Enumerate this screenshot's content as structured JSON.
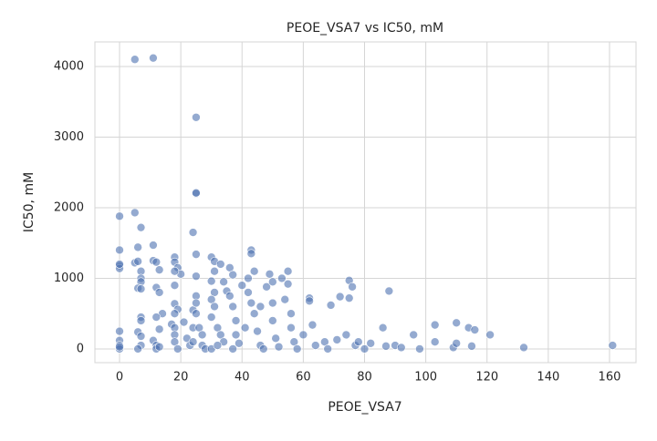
{
  "chart_data": {
    "type": "scatter",
    "title": "PEOE_VSA7 vs IC50, mM",
    "x_label": "PEOE_VSA7",
    "y_label": "IC50, mM",
    "x": [
      5,
      11,
      25,
      25,
      25,
      0,
      5,
      7,
      24,
      0,
      6,
      11,
      0,
      0,
      0,
      0,
      0,
      0,
      0,
      0,
      5,
      6,
      7,
      7,
      7,
      6,
      7,
      7,
      7,
      6,
      7,
      7,
      6,
      11,
      12,
      13,
      12,
      13,
      14,
      12,
      11,
      12,
      12,
      13,
      13,
      18,
      18,
      19,
      20,
      18,
      18,
      18,
      19,
      18,
      17,
      18,
      18,
      18,
      19,
      21,
      22,
      23,
      24,
      24,
      24,
      25,
      25,
      25,
      25,
      25,
      26,
      27,
      27,
      28,
      30,
      31,
      31,
      30,
      31,
      30,
      31,
      30,
      32,
      33,
      34,
      30,
      32,
      33,
      34,
      35,
      36,
      37,
      36,
      37,
      38,
      38,
      37,
      39,
      40,
      41,
      43,
      43,
      42,
      42,
      43,
      44,
      44,
      45,
      46,
      46,
      47,
      48,
      49,
      50,
      50,
      50,
      51,
      52,
      53,
      54,
      55,
      55,
      56,
      56,
      57,
      58,
      60,
      62,
      62,
      63,
      64,
      67,
      68,
      69,
      71,
      72,
      74,
      75,
      76,
      75,
      77,
      78,
      80,
      82,
      86,
      87,
      88,
      90,
      92,
      96,
      98,
      103,
      103,
      109,
      110,
      110,
      114,
      115,
      116,
      121,
      132,
      161
    ],
    "values": [
      4100,
      4120,
      3280,
      2200,
      2210,
      1880,
      1930,
      1720,
      1650,
      1400,
      1440,
      1470,
      1180,
      1140,
      1200,
      250,
      120,
      50,
      0,
      30,
      1220,
      1240,
      1100,
      1000,
      950,
      860,
      850,
      450,
      400,
      240,
      180,
      50,
      0,
      1250,
      1230,
      1120,
      870,
      800,
      500,
      450,
      120,
      50,
      0,
      30,
      280,
      1300,
      1230,
      1150,
      1060,
      1100,
      900,
      640,
      560,
      500,
      350,
      300,
      200,
      100,
      0,
      380,
      150,
      50,
      550,
      300,
      100,
      1340,
      1030,
      750,
      650,
      500,
      300,
      200,
      50,
      0,
      1300,
      1240,
      1100,
      960,
      800,
      700,
      600,
      450,
      300,
      200,
      100,
      0,
      50,
      1200,
      950,
      820,
      1150,
      1050,
      750,
      600,
      400,
      200,
      0,
      80,
      900,
      300,
      1400,
      1350,
      1000,
      800,
      650,
      1100,
      500,
      250,
      600,
      50,
      0,
      880,
      1060,
      950,
      650,
      400,
      150,
      30,
      1000,
      700,
      1100,
      920,
      500,
      300,
      100,
      0,
      200,
      720,
      680,
      340,
      50,
      100,
      0,
      620,
      130,
      740,
      200,
      970,
      880,
      720,
      50,
      100,
      0,
      80,
      300,
      40,
      820,
      50,
      20,
      200,
      0,
      340,
      100,
      20,
      370,
      80,
      300,
      40,
      270,
      200,
      20,
      50
    ],
    "color": "#4c72b0",
    "xlim": [
      -8.05,
      168.65
    ],
    "xticks": [
      0,
      20,
      40,
      60,
      80,
      100,
      120,
      140,
      160
    ],
    "ylim": [
      -194,
      4348
    ],
    "yticks": [
      0,
      1000,
      2000,
      3000,
      4000
    ],
    "grid": true
  }
}
